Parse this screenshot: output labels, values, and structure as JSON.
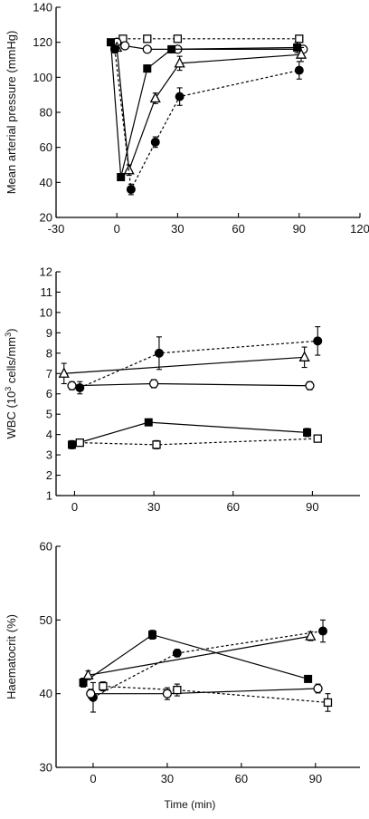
{
  "chart_data": [
    {
      "type": "line",
      "xlabel": "",
      "ylabel": "Mean arterial pressure (mmHg)",
      "xlim": [
        -30,
        120
      ],
      "ylim": [
        20,
        140
      ],
      "xticks": [
        -30,
        0,
        30,
        60,
        90,
        120
      ],
      "yticks": [
        20,
        40,
        60,
        80,
        100,
        120,
        140
      ],
      "xtick_labels": [
        "-30",
        "0",
        "30",
        "60",
        "90",
        "120"
      ],
      "ytick_labels": [
        "20",
        "40",
        "60",
        "80",
        "100",
        "120",
        "140"
      ],
      "series": [
        {
          "marker": "open-square",
          "dashed": true,
          "x": [
            3,
            15,
            30,
            90
          ],
          "y": [
            122,
            122,
            122,
            122
          ],
          "err": [
            0,
            0,
            0,
            0
          ]
        },
        {
          "marker": "open-circle",
          "dashed": false,
          "x": [
            0,
            4,
            15,
            30,
            92
          ],
          "y": [
            120,
            118,
            116,
            116,
            116
          ],
          "err": [
            0,
            0,
            0,
            0,
            0
          ]
        },
        {
          "marker": "filled-square",
          "dashed": false,
          "x": [
            -3,
            2,
            15,
            27,
            89
          ],
          "y": [
            120,
            43,
            105,
            116,
            117
          ],
          "err": [
            0,
            2,
            2,
            2,
            3
          ]
        },
        {
          "marker": "open-triangle",
          "dashed": false,
          "x": [
            0,
            6,
            19,
            31,
            91
          ],
          "y": [
            117,
            47,
            88,
            108,
            113
          ],
          "err": [
            0,
            3,
            3,
            4,
            4
          ]
        },
        {
          "marker": "filled-circle",
          "dashed": true,
          "x": [
            -1,
            7,
            19,
            31,
            90
          ],
          "y": [
            116,
            36,
            63,
            89,
            104
          ],
          "err": [
            2,
            3,
            3,
            5,
            5
          ]
        }
      ]
    },
    {
      "type": "line",
      "xlabel": "",
      "ylabel": "WBC (10",
      "ylabel_sup": "3",
      "ylabel_rest": " cells/mm",
      "ylabel_sup2": "3",
      "ylabel_end": ")",
      "xlim": [
        -7,
        108
      ],
      "ylim": [
        1,
        12
      ],
      "xticks": [
        0,
        30,
        60,
        90
      ],
      "yticks": [
        1,
        2,
        3,
        4,
        5,
        6,
        7,
        8,
        9,
        10,
        11,
        12
      ],
      "xtick_labels": [
        "0",
        "30",
        "60",
        "90"
      ],
      "ytick_labels": [
        "1",
        "2",
        "3",
        "4",
        "5",
        "6",
        "7",
        "8",
        "9",
        "10",
        "11",
        "12"
      ],
      "series": [
        {
          "marker": "open-triangle",
          "dashed": false,
          "x": [
            -4,
            87
          ],
          "y": [
            7.0,
            7.8
          ],
          "err": [
            0.5,
            0.5
          ]
        },
        {
          "marker": "filled-circle",
          "dashed": true,
          "x": [
            2,
            32,
            92
          ],
          "y": [
            6.3,
            8.0,
            8.6
          ],
          "err": [
            0.3,
            0.8,
            0.7
          ]
        },
        {
          "marker": "open-circle",
          "dashed": false,
          "x": [
            -1,
            30,
            89
          ],
          "y": [
            6.4,
            6.5,
            6.4
          ],
          "err": [
            0.2,
            0.2,
            0.2
          ]
        },
        {
          "marker": "filled-square",
          "dashed": false,
          "x": [
            -1,
            28,
            88
          ],
          "y": [
            3.5,
            4.6,
            4.1
          ],
          "err": [
            0.2,
            0.1,
            0.2
          ]
        },
        {
          "marker": "open-square",
          "dashed": true,
          "x": [
            2,
            31,
            92
          ],
          "y": [
            3.6,
            3.5,
            3.8
          ],
          "err": [
            0.1,
            0.2,
            0.1
          ]
        }
      ]
    },
    {
      "type": "line",
      "xlabel": "Time (min)",
      "ylabel": "Haematocrit (%)",
      "xlim": [
        -15,
        108
      ],
      "ylim": [
        30,
        60
      ],
      "xticks": [
        0,
        30,
        60,
        90
      ],
      "yticks": [
        30,
        40,
        50,
        60
      ],
      "xtick_labels": [
        "0",
        "30",
        "60",
        "90"
      ],
      "ytick_labels": [
        "30",
        "40",
        "50",
        "60"
      ],
      "series": [
        {
          "marker": "filled-square",
          "dashed": false,
          "x": [
            -4,
            24,
            87
          ],
          "y": [
            41.5,
            48.0,
            42.0
          ],
          "err": [
            0.6,
            0.6,
            0.4
          ]
        },
        {
          "marker": "filled-circle",
          "dashed": true,
          "x": [
            0,
            34,
            93
          ],
          "y": [
            39.5,
            45.5,
            48.5
          ],
          "err": [
            2.0,
            0.5,
            1.5
          ]
        },
        {
          "marker": "open-triangle",
          "dashed": false,
          "x": [
            -2,
            88
          ],
          "y": [
            42.5,
            47.8
          ],
          "err": [
            0.6,
            0.6
          ]
        },
        {
          "marker": "open-circle",
          "dashed": false,
          "x": [
            -1,
            30,
            91
          ],
          "y": [
            40.0,
            40.0,
            40.7
          ],
          "err": [
            0.6,
            0.8,
            0.6
          ]
        },
        {
          "marker": "open-square",
          "dashed": true,
          "x": [
            4,
            34,
            95
          ],
          "y": [
            41.0,
            40.5,
            38.8
          ],
          "err": [
            0.6,
            0.8,
            1.2
          ]
        }
      ]
    }
  ]
}
